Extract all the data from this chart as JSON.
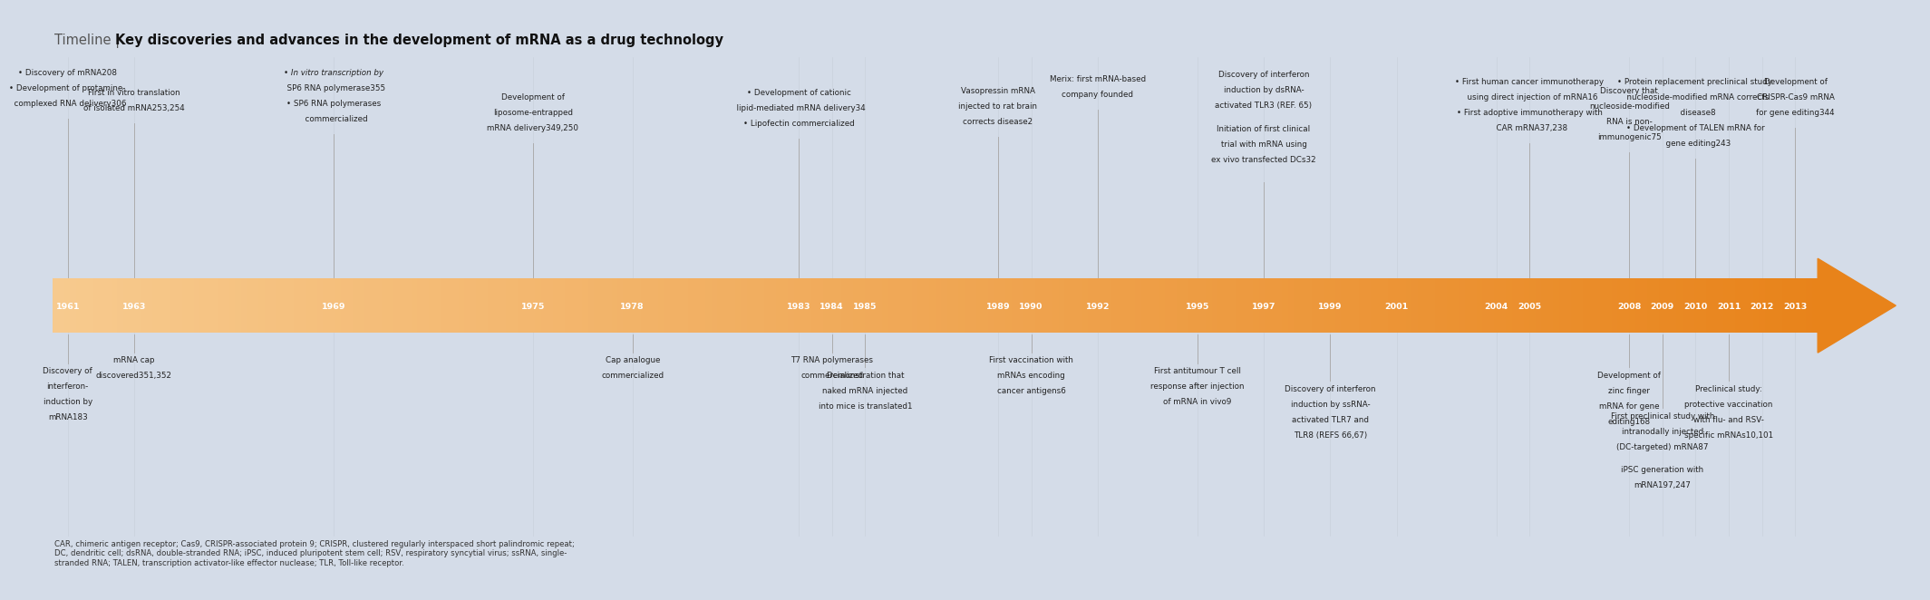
{
  "title_normal": "Timeline | ",
  "title_bold": "Key discoveries and advances in the development of mRNA as a drug technology",
  "background_color": "#d4dce8",
  "arrow_color_light": "#f7ca8e",
  "arrow_color_dark": "#e8831a",
  "text_color_white": "#ffffff",
  "text_color_dark": "#222222",
  "years": [
    1961,
    1963,
    1969,
    1975,
    1978,
    1983,
    1984,
    1985,
    1989,
    1990,
    1992,
    1995,
    1997,
    1999,
    2001,
    2004,
    2005,
    2008,
    2009,
    2010,
    2011,
    2012,
    2013
  ],
  "year_min": 1961,
  "year_max": 2013,
  "footnote": "CAR, chimeric antigen receptor; Cas9, CRISPR-associated protein 9; CRISPR, clustered regularly interspaced short palindromic repeat;\nDC, dendritic cell; dsRNA, double-stranded RNA; iPSC, induced pluripotent stem cell; RSV, respiratory syncytial virus; ssRNA, single-\nstranded RNA; TALEN, transcription activator-like effector nuclease; TLR, Toll-like receptor.",
  "above_entries": [
    {
      "year": 1961,
      "y": 5.82,
      "text": "bullet Discovery of mRNA208\nbullet Development of protamine-\n  complexed RNA delivery306"
    },
    {
      "year": 1963,
      "y": 5.6,
      "text": "First in vitro translation\nof isolated mRNA253,254"
    },
    {
      "year": 1969,
      "y": 5.82,
      "text": "italic In vitro transcription by\n  SP6 RNA polymerase355\nbullet SP6 RNA polymerases\n  commercialized"
    },
    {
      "year": 1975,
      "y": 5.55,
      "text": "Development of\nliposome-entrapped\nmRNA delivery349,250"
    },
    {
      "year": 1983,
      "y": 5.6,
      "text": "bullet Development of cationic\n  lipid-mediated mRNA delivery34\nbullet Lipofectin commercialized"
    },
    {
      "year": 1989,
      "y": 5.62,
      "text": "Vasopressin mRNA\ninjected to rat brain\ncorrects disease2"
    },
    {
      "year": 1992,
      "y": 5.75,
      "text": "Merix: first mRNA-based\ncompany founded"
    },
    {
      "year": 1997,
      "y": 5.8,
      "text": "Discovery of interferon\ninduction by dsRNA-\nactivated TLR3 (REF. 65)\n \nInitiation of first clinical\ntrial with mRNA using\nex vivo transfected DCs32"
    },
    {
      "year": 2005,
      "y": 5.72,
      "text": "bullet First human cancer immunotherapy\n  using direct injection of mRNA16\nbullet First adoptive immunotherapy with\n  CAR mRNA37,238"
    },
    {
      "year": 2008,
      "y": 5.62,
      "text": "Discovery that\nnucleoside-modified\nRNA is non-\nimmunogenic75"
    },
    {
      "year": 2010,
      "y": 5.72,
      "text": "bullet Protein replacement preclinical study:\n  nucleoside-modified mRNA corrects\n  disease8\nbullet Development of TALEN mRNA for\n  gene editing243"
    },
    {
      "year": 2013,
      "y": 5.72,
      "text": "Development of\nCRISPR-Cas9 mRNA\nfor gene editing344"
    }
  ],
  "below_entries": [
    {
      "year": 1961,
      "y": 2.5,
      "text": "Discovery of\ninterferon-\ninduction by\nmRNA183"
    },
    {
      "year": 1963,
      "y": 2.62,
      "text": "mRNA cap\ndiscovered351,352"
    },
    {
      "year": 1978,
      "y": 2.62,
      "text": "Cap analogue\ncommercialized"
    },
    {
      "year": 1984,
      "y": 2.62,
      "text": "T7 RNA polymerases\ncommercialized"
    },
    {
      "year": 1985,
      "y": 2.45,
      "text": "Demonstration that\nnaked mRNA injected\ninto mice is translated1"
    },
    {
      "year": 1990,
      "y": 2.62,
      "text": "First vaccination with\nmRNAs encoding\ncancer antigens6"
    },
    {
      "year": 1995,
      "y": 2.5,
      "text": "First antitumour T cell\nresponse after injection\nof mRNA in vivo9"
    },
    {
      "year": 1999,
      "y": 2.3,
      "text": "Discovery of interferon\ninduction by ssRNA-\nactivated TLR7 and\nTLR8 (REFS 66,67)"
    },
    {
      "year": 2008,
      "y": 2.45,
      "text": "Development of\nzinc finger\nmRNA for gene\nediting168"
    },
    {
      "year": 2009,
      "y": 2.0,
      "text": "First preclinical study with\nintranodally injected\n(DC-targeted) mRNA87\n \niPSC generation with\nmRNA197,247"
    },
    {
      "year": 2011,
      "y": 2.3,
      "text": "Preclinical study:\nprotective vaccination\nwith flu- and RSV-\nspecific mRNAs10,101"
    }
  ]
}
